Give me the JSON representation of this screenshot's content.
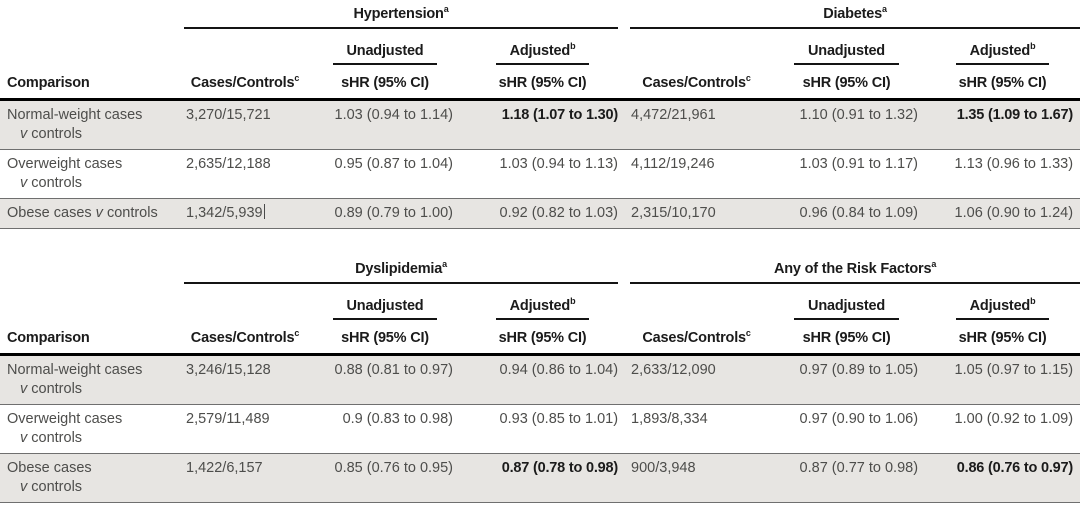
{
  "labels": {
    "comparison": "Comparison",
    "cases_controls": "Cases/Controls",
    "cases_controls_sup": "c",
    "unadjusted": "Unadjusted",
    "adjusted": "Adjusted",
    "adjusted_sup": "b",
    "shr": "sHR (95% CI)",
    "group_sup": "a"
  },
  "colors": {
    "row_shade": "#e7e5e2",
    "rule": "#000000",
    "header_text": "#1b1b1b",
    "body_text": "#4d4d4b"
  },
  "tables": [
    {
      "groups": [
        {
          "label": "Hypertension",
          "sup": "a"
        },
        {
          "label": "Diabetes",
          "sup": "a"
        }
      ],
      "rows": [
        {
          "comparison_lines": [
            "Normal-weight cases",
            "v controls"
          ],
          "shaded": true,
          "cells": [
            {
              "text": "3,270/15,721"
            },
            {
              "text": "1.03 (0.94 to 1.14)"
            },
            {
              "text": "1.18 (1.07 to 1.30)",
              "bold": true
            },
            {
              "text": "4,472/21,961"
            },
            {
              "text": "1.10 (0.91 to 1.32)"
            },
            {
              "text": "1.35 (1.09 to 1.67)",
              "bold": true
            }
          ]
        },
        {
          "comparison_lines": [
            "Overweight cases",
            "v controls"
          ],
          "shaded": false,
          "cells": [
            {
              "text": "2,635/12,188"
            },
            {
              "text": "0.95 (0.87 to 1.04)"
            },
            {
              "text": "1.03 (0.94 to 1.13)"
            },
            {
              "text": "4,112/19,246"
            },
            {
              "text": "1.03 (0.91 to 1.17)"
            },
            {
              "text": "1.13 (0.96 to 1.33)"
            }
          ]
        },
        {
          "comparison_lines": [
            "Obese cases v controls"
          ],
          "shaded": true,
          "cells": [
            {
              "text": "1,342/5,939",
              "caret": true
            },
            {
              "text": "0.89 (0.79 to 1.00)"
            },
            {
              "text": "0.92 (0.82 to 1.03)"
            },
            {
              "text": "2,315/10,170"
            },
            {
              "text": "0.96 (0.84 to 1.09)"
            },
            {
              "text": "1.06 (0.90 to 1.24)"
            }
          ]
        }
      ]
    },
    {
      "groups": [
        {
          "label": "Dyslipidemia",
          "sup": "a"
        },
        {
          "label": "Any of the Risk Factors",
          "sup": "a"
        }
      ],
      "rows": [
        {
          "comparison_lines": [
            "Normal-weight cases",
            "v controls"
          ],
          "shaded": true,
          "cells": [
            {
              "text": "3,246/15,128"
            },
            {
              "text": "0.88 (0.81 to 0.97)"
            },
            {
              "text": "0.94 (0.86 to 1.04)"
            },
            {
              "text": "2,633/12,090"
            },
            {
              "text": "0.97 (0.89 to 1.05)"
            },
            {
              "text": "1.05 (0.97 to 1.15)"
            }
          ]
        },
        {
          "comparison_lines": [
            "Overweight cases",
            "v controls"
          ],
          "shaded": false,
          "cells": [
            {
              "text": "2,579/11,489"
            },
            {
              "text": "0.9 (0.83 to 0.98)"
            },
            {
              "text": "0.93 (0.85 to 1.01)"
            },
            {
              "text": "1,893/8,334"
            },
            {
              "text": "0.97 (0.90 to 1.06)"
            },
            {
              "text": "1.00 (0.92 to 1.09)"
            }
          ]
        },
        {
          "comparison_lines": [
            "Obese cases",
            "v controls"
          ],
          "shaded": true,
          "cells": [
            {
              "text": "1,422/6,157"
            },
            {
              "text": "0.85 (0.76 to 0.95)"
            },
            {
              "text": "0.87 (0.78 to 0.98)",
              "bold": true
            },
            {
              "text": "900/3,948"
            },
            {
              "text": "0.87 (0.77 to 0.98)"
            },
            {
              "text": "0.86 (0.76 to 0.97)",
              "bold": true
            }
          ]
        }
      ]
    }
  ]
}
